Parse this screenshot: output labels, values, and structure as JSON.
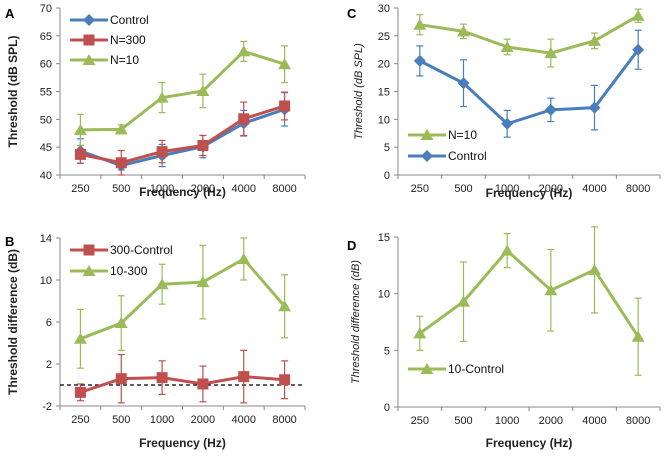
{
  "chart_data": [
    {
      "panel": "A",
      "type": "line",
      "categories": [
        "250",
        "500",
        "1000",
        "2000",
        "4000",
        "8000"
      ],
      "ylabel": "Threshold (dB SPL)",
      "xlabel": "Frequency (Hz)",
      "ylim": [
        40,
        70
      ],
      "yticks": [
        40,
        45,
        50,
        55,
        60,
        65,
        70
      ],
      "ylabel_bold": true,
      "legend_position": "top-left",
      "series": [
        {
          "name": "Control",
          "color": "#4A7EBB",
          "marker": "diamond",
          "values": [
            44.3,
            41.7,
            43.5,
            45.1,
            49.3,
            51.8
          ],
          "errors": [
            2.2,
            0.8,
            2.0,
            2.0,
            2.3,
            3.0
          ]
        },
        {
          "name": "N=300",
          "color": "#C0504D",
          "marker": "square",
          "values": [
            43.7,
            42.2,
            44.2,
            45.3,
            50.1,
            52.4
          ],
          "errors": [
            1.6,
            2.2,
            2.0,
            1.8,
            3.0,
            2.5
          ]
        },
        {
          "name": "N=10",
          "color": "#9BBB59",
          "marker": "triangle",
          "values": [
            48.1,
            48.2,
            53.9,
            55.1,
            62.2,
            59.9
          ],
          "errors": [
            2.8,
            0.8,
            2.7,
            3.0,
            1.8,
            3.3
          ]
        }
      ]
    },
    {
      "panel": "B",
      "type": "line",
      "categories": [
        "250",
        "500",
        "1000",
        "2000",
        "4000",
        "8000"
      ],
      "ylabel": "Threshold difference (dB)",
      "xlabel": "Frequency (Hz)",
      "ylim": [
        -2,
        14
      ],
      "yticks": [
        -2,
        2,
        6,
        10,
        14
      ],
      "ylabel_bold": true,
      "reference_line": 0,
      "legend_position": "top-left",
      "series": [
        {
          "name": "300-Control",
          "color": "#C0504D",
          "marker": "square",
          "values": [
            -0.7,
            0.6,
            0.7,
            0.1,
            0.8,
            0.5
          ],
          "errors": [
            0.8,
            2.3,
            1.6,
            1.7,
            2.5,
            1.8
          ]
        },
        {
          "name": "10-300",
          "color": "#9BBB59",
          "marker": "triangle",
          "values": [
            4.4,
            5.9,
            9.6,
            9.8,
            12.0,
            7.5
          ],
          "errors": [
            2.8,
            2.6,
            1.9,
            3.5,
            2.0,
            3.0
          ]
        }
      ]
    },
    {
      "panel": "C",
      "type": "line",
      "categories": [
        "250",
        "500",
        "1000",
        "2000",
        "4000",
        "8000"
      ],
      "ylabel": "Threshold (dB SPL)",
      "xlabel": "Frequency (Hz)",
      "ylim": [
        0,
        30
      ],
      "yticks": [
        0,
        5,
        10,
        15,
        20,
        25,
        30
      ],
      "ylabel_bold": false,
      "legend_position": "bottom-left",
      "series": [
        {
          "name": "N=10",
          "color": "#9BBB59",
          "marker": "triangle",
          "values": [
            27.0,
            25.8,
            23.0,
            21.9,
            24.1,
            28.6
          ],
          "errors": [
            1.8,
            1.3,
            1.4,
            2.5,
            1.4,
            1.2
          ]
        },
        {
          "name": "Control",
          "color": "#4A7EBB",
          "marker": "diamond",
          "values": [
            20.5,
            16.5,
            9.2,
            11.7,
            12.1,
            22.5
          ],
          "errors": [
            2.7,
            4.2,
            2.4,
            2.1,
            4.0,
            3.5
          ]
        }
      ]
    },
    {
      "panel": "D",
      "type": "line",
      "categories": [
        "250",
        "500",
        "1000",
        "2000",
        "4000",
        "8000"
      ],
      "ylabel": "Threshold difference (dB)",
      "xlabel": "Frequency (Hz)",
      "ylim": [
        0,
        15
      ],
      "yticks": [
        0,
        5,
        10,
        15
      ],
      "ylabel_bold": false,
      "legend_position": "bottom-left",
      "series": [
        {
          "name": "10-Control",
          "color": "#9BBB59",
          "marker": "triangle",
          "values": [
            6.5,
            9.3,
            13.8,
            10.3,
            12.1,
            6.2
          ],
          "errors": [
            1.5,
            3.5,
            1.5,
            3.6,
            3.8,
            3.4
          ]
        }
      ]
    }
  ]
}
